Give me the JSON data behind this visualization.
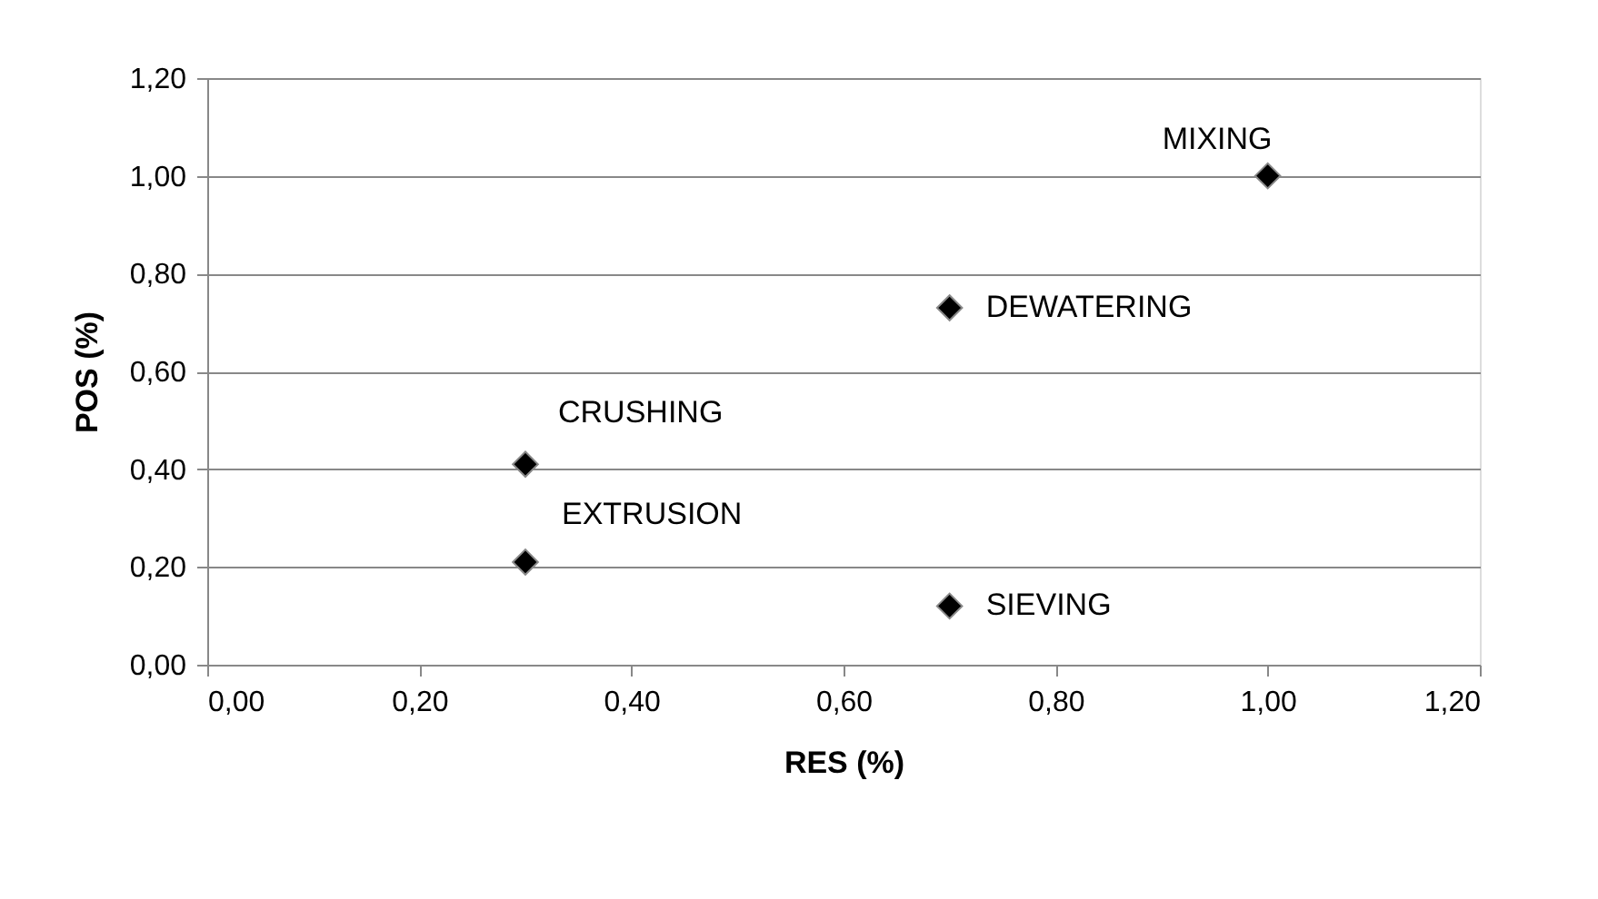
{
  "chart_data": {
    "type": "scatter",
    "xlabel": "RES (%)",
    "ylabel": "POS (%)",
    "x": [
      1.0,
      0.7,
      0.3,
      0.3,
      0.7
    ],
    "series": [
      {
        "color": "#000000",
        "values": [
          1.0,
          0.73,
          0.41,
          0.21,
          0.12
        ]
      }
    ],
    "marker": "diamond",
    "grid": "y",
    "xlim": [
      0,
      1.2
    ],
    "ylim": [
      0,
      1.2
    ],
    "xticks": [
      {
        "value": 0,
        "label": "0,00"
      },
      {
        "value": 0.2,
        "label": "0,20"
      },
      {
        "value": 0.4,
        "label": "0,40"
      },
      {
        "value": 0.6,
        "label": "0,60"
      },
      {
        "value": 0.8,
        "label": "0,80"
      },
      {
        "value": 1.0,
        "label": "1,00"
      },
      {
        "value": 1.2,
        "label": "1,20"
      }
    ],
    "yticks": [
      {
        "value": 0,
        "label": "0,00"
      },
      {
        "value": 0.2,
        "label": "0,20"
      },
      {
        "value": 0.4,
        "label": "0,40"
      },
      {
        "value": 0.6,
        "label": "0,60"
      },
      {
        "value": 0.8,
        "label": "0,80"
      },
      {
        "value": 1.0,
        "label": "1,00"
      },
      {
        "value": 1.2,
        "label": "1,20"
      }
    ],
    "annotations": [
      {
        "text": "MIXING",
        "x": 1.0,
        "y": 1.0
      },
      {
        "text": "DEWATERING",
        "x": 0.7,
        "y": 0.73
      },
      {
        "text": "CRUSHING",
        "x": 0.3,
        "y": 0.41
      },
      {
        "text": "EXTRUSION",
        "x": 0.3,
        "y": 0.21
      },
      {
        "text": "SIEVING",
        "x": 0.7,
        "y": 0.12
      }
    ]
  }
}
